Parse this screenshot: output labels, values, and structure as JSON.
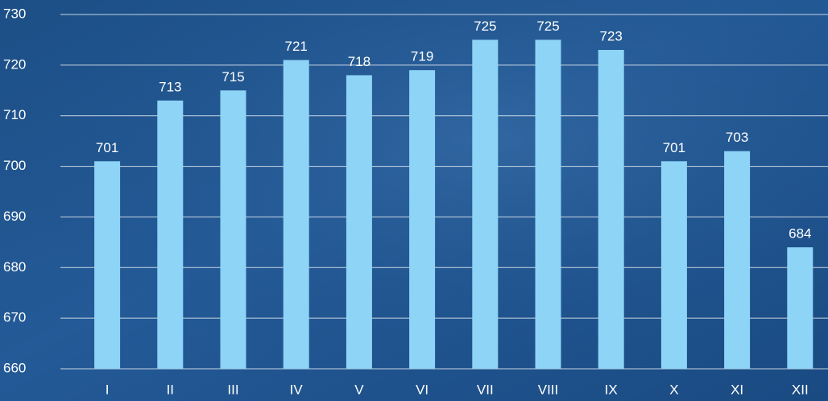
{
  "chart_data": {
    "type": "bar",
    "categories": [
      "I",
      "II",
      "III",
      "IV",
      "V",
      "VI",
      "VII",
      "VIII",
      "IX",
      "X",
      "XI",
      "XII"
    ],
    "values": [
      701,
      713,
      715,
      721,
      718,
      719,
      725,
      725,
      723,
      701,
      703,
      684
    ],
    "color": "#8dd4f6",
    "ylim": [
      660,
      730
    ],
    "yticks": [
      660,
      670,
      680,
      690,
      700,
      710,
      720,
      730
    ],
    "grid": true
  }
}
